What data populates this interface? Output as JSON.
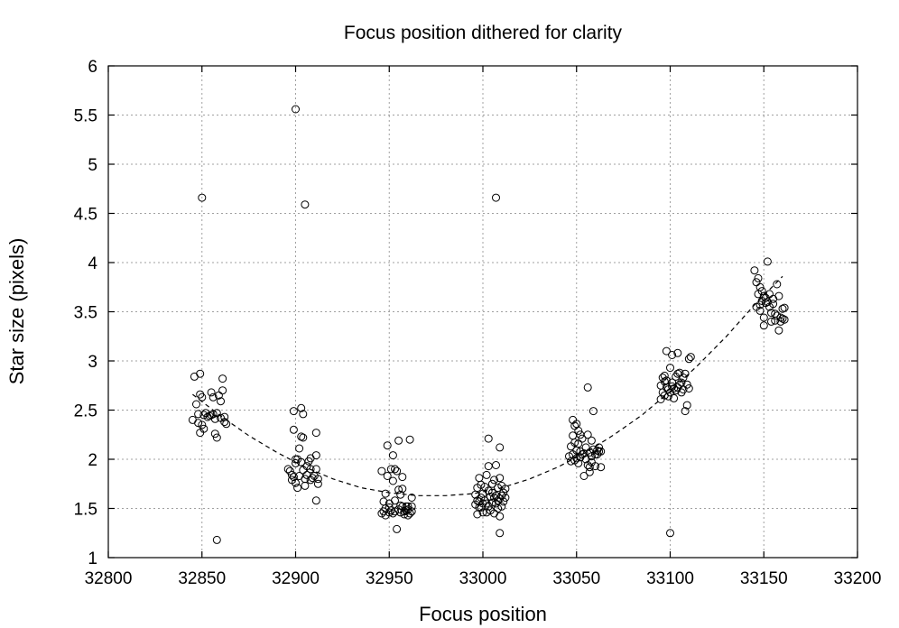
{
  "chart_data": {
    "type": "scatter",
    "title": "Focus position dithered for clarity",
    "xlabel": "Focus position",
    "ylabel": "Star size (pixels)",
    "xlim": [
      32800,
      33200
    ],
    "ylim": [
      1,
      6
    ],
    "x_ticks": [
      "32800",
      "32850",
      "32900",
      "32950",
      "33000",
      "33050",
      "33100",
      "33150",
      "33200"
    ],
    "y_ticks": [
      "1",
      "1.5",
      "2",
      "2.5",
      "3",
      "3.5",
      "4",
      "4.5",
      "5",
      "5.5",
      "6"
    ],
    "grid": true,
    "marker": "open-circle",
    "series": [
      {
        "points": [
          [
            32845,
            2.4
          ],
          [
            32846,
            2.84
          ],
          [
            32847,
            2.56
          ],
          [
            32848,
            2.37
          ],
          [
            32848,
            2.46
          ],
          [
            32849,
            2.87
          ],
          [
            32849,
            2.66
          ],
          [
            32849,
            2.27
          ],
          [
            32850,
            2.63
          ],
          [
            32850,
            2.35
          ],
          [
            32851,
            2.45
          ],
          [
            32851,
            2.31
          ],
          [
            32852,
            2.47
          ],
          [
            32853,
            2.43
          ],
          [
            32854,
            2.44
          ],
          [
            32855,
            2.68
          ],
          [
            32855,
            2.45
          ],
          [
            32856,
            2.63
          ],
          [
            32856,
            2.46
          ],
          [
            32857,
            2.41
          ],
          [
            32857,
            2.26
          ],
          [
            32858,
            2.22
          ],
          [
            32858,
            2.47
          ],
          [
            32859,
            2.65
          ],
          [
            32860,
            2.59
          ],
          [
            32860,
            2.42
          ],
          [
            32861,
            2.82
          ],
          [
            32861,
            2.7
          ],
          [
            32862,
            2.38
          ],
          [
            32862,
            2.43
          ],
          [
            32863,
            2.36
          ],
          [
            32850,
            4.66
          ],
          [
            32858,
            1.18
          ],
          [
            32896,
            1.9
          ],
          [
            32897,
            1.88
          ],
          [
            32898,
            1.84
          ],
          [
            32898,
            1.79
          ],
          [
            32899,
            1.82
          ],
          [
            32899,
            2.49
          ],
          [
            32899,
            2.3
          ],
          [
            32900,
            1.96
          ],
          [
            32900,
            2.0
          ],
          [
            32900,
            1.76
          ],
          [
            32901,
            2.0
          ],
          [
            32901,
            1.71
          ],
          [
            32902,
            1.83
          ],
          [
            32902,
            2.11
          ],
          [
            32903,
            2.52
          ],
          [
            32903,
            2.23
          ],
          [
            32903,
            1.97
          ],
          [
            32904,
            2.46
          ],
          [
            32904,
            2.22
          ],
          [
            32904,
            1.89
          ],
          [
            32905,
            1.8
          ],
          [
            32905,
            1.73
          ],
          [
            32906,
            1.84
          ],
          [
            32906,
            1.93
          ],
          [
            32907,
            1.98
          ],
          [
            32908,
            1.9
          ],
          [
            32908,
            1.79
          ],
          [
            32908,
            2.01
          ],
          [
            32909,
            1.81
          ],
          [
            32910,
            1.83
          ],
          [
            32911,
            2.04
          ],
          [
            32911,
            1.9
          ],
          [
            32911,
            2.27
          ],
          [
            32911,
            1.58
          ],
          [
            32912,
            1.75
          ],
          [
            32912,
            1.8
          ],
          [
            32900,
            5.56
          ],
          [
            32905,
            4.59
          ],
          [
            32946,
            1.88
          ],
          [
            32946,
            1.45
          ],
          [
            32947,
            1.47
          ],
          [
            32947,
            1.57
          ],
          [
            32948,
            1.5
          ],
          [
            32948,
            1.43
          ],
          [
            32948,
            1.65
          ],
          [
            32949,
            1.83
          ],
          [
            32949,
            2.14
          ],
          [
            32950,
            1.51
          ],
          [
            32950,
            1.46
          ],
          [
            32950,
            1.55
          ],
          [
            32951,
            1.9
          ],
          [
            32951,
            1.48
          ],
          [
            32952,
            1.78
          ],
          [
            32952,
            1.45
          ],
          [
            32952,
            2.04
          ],
          [
            32953,
            1.47
          ],
          [
            32953,
            1.58
          ],
          [
            32953,
            1.9
          ],
          [
            32954,
            1.88
          ],
          [
            32954,
            1.29
          ],
          [
            32955,
            1.69
          ],
          [
            32955,
            1.49
          ],
          [
            32955,
            2.19
          ],
          [
            32956,
            1.64
          ],
          [
            32956,
            1.46
          ],
          [
            32956,
            1.53
          ],
          [
            32957,
            1.82
          ],
          [
            32957,
            1.7
          ],
          [
            32957,
            1.52
          ],
          [
            32958,
            1.47
          ],
          [
            32958,
            1.44
          ],
          [
            32959,
            1.48
          ],
          [
            32959,
            1.52
          ],
          [
            32960,
            1.43
          ],
          [
            32960,
            1.49
          ],
          [
            32960,
            1.52
          ],
          [
            32961,
            1.45
          ],
          [
            32961,
            2.2
          ],
          [
            32962,
            1.61
          ],
          [
            32962,
            1.47
          ],
          [
            32962,
            1.52
          ],
          [
            32996,
            1.54
          ],
          [
            32996,
            1.64
          ],
          [
            32997,
            1.71
          ],
          [
            32997,
            1.58
          ],
          [
            32997,
            1.44
          ],
          [
            32998,
            1.57
          ],
          [
            32998,
            1.81
          ],
          [
            32998,
            1.51
          ],
          [
            32999,
            1.51
          ],
          [
            32999,
            1.61
          ],
          [
            32999,
            1.74
          ],
          [
            33000,
            1.55
          ],
          [
            33000,
            1.65
          ],
          [
            33000,
            1.46
          ],
          [
            33001,
            1.58
          ],
          [
            33001,
            1.72
          ],
          [
            33002,
            1.55
          ],
          [
            33002,
            1.84
          ],
          [
            33002,
            1.46
          ],
          [
            33003,
            1.68
          ],
          [
            33003,
            1.52
          ],
          [
            33003,
            1.93
          ],
          [
            33004,
            1.62
          ],
          [
            33004,
            1.48
          ],
          [
            33005,
            1.75
          ],
          [
            33005,
            1.56
          ],
          [
            33005,
            1.66
          ],
          [
            33006,
            1.61
          ],
          [
            33006,
            1.45
          ],
          [
            33006,
            1.79
          ],
          [
            33007,
            1.94
          ],
          [
            33007,
            1.55
          ],
          [
            33007,
            1.63
          ],
          [
            33008,
            1.71
          ],
          [
            33008,
            1.5
          ],
          [
            33008,
            1.58
          ],
          [
            33009,
            1.6
          ],
          [
            33009,
            1.81
          ],
          [
            33009,
            1.42
          ],
          [
            33010,
            1.73
          ],
          [
            33010,
            1.63
          ],
          [
            33010,
            1.52
          ],
          [
            33011,
            1.57
          ],
          [
            33011,
            1.66
          ],
          [
            33012,
            1.61
          ],
          [
            33012,
            1.7
          ],
          [
            33003,
            2.21
          ],
          [
            33009,
            2.12
          ],
          [
            33009,
            1.25
          ],
          [
            33007,
            4.66
          ],
          [
            33046,
            2.03
          ],
          [
            33047,
            2.13
          ],
          [
            33047,
            1.98
          ],
          [
            33048,
            2.4
          ],
          [
            33048,
            2.24
          ],
          [
            33048,
            2.05
          ],
          [
            33049,
            2.34
          ],
          [
            33049,
            2.17
          ],
          [
            33049,
            1.99
          ],
          [
            33050,
            2.09
          ],
          [
            33050,
            2.36
          ],
          [
            33050,
            2.01
          ],
          [
            33051,
            2.29
          ],
          [
            33051,
            2.16
          ],
          [
            33051,
            1.96
          ],
          [
            33052,
            2.08
          ],
          [
            33052,
            2.25
          ],
          [
            33052,
            2.02
          ],
          [
            33053,
            2.21
          ],
          [
            33053,
            2.05
          ],
          [
            33054,
            1.83
          ],
          [
            33054,
            2.06
          ],
          [
            33055,
            2.0
          ],
          [
            33055,
            2.12
          ],
          [
            33056,
            1.94
          ],
          [
            33056,
            2.25
          ],
          [
            33057,
            1.92
          ],
          [
            33057,
            2.07
          ],
          [
            33057,
            1.87
          ],
          [
            33058,
            2.19
          ],
          [
            33058,
            2.03
          ],
          [
            33058,
            1.97
          ],
          [
            33059,
            2.1
          ],
          [
            33059,
            2.49
          ],
          [
            33060,
            2.05
          ],
          [
            33060,
            1.93
          ],
          [
            33061,
            2.09
          ],
          [
            33061,
            2.05
          ],
          [
            33062,
            2.08
          ],
          [
            33062,
            2.12
          ],
          [
            33063,
            2.08
          ],
          [
            33063,
            1.92
          ],
          [
            33056,
            2.73
          ],
          [
            33095,
            2.61
          ],
          [
            33095,
            2.75
          ],
          [
            33096,
            2.83
          ],
          [
            33096,
            2.68
          ],
          [
            33097,
            2.85
          ],
          [
            33097,
            2.79
          ],
          [
            33097,
            2.65
          ],
          [
            33098,
            2.73
          ],
          [
            33098,
            3.1
          ],
          [
            33098,
            2.8
          ],
          [
            33099,
            2.64
          ],
          [
            33099,
            2.71
          ],
          [
            33100,
            2.68
          ],
          [
            33100,
            2.93
          ],
          [
            33101,
            3.06
          ],
          [
            33101,
            2.74
          ],
          [
            33101,
            2.78
          ],
          [
            33102,
            2.62
          ],
          [
            33102,
            2.72
          ],
          [
            33103,
            2.7
          ],
          [
            33103,
            2.84
          ],
          [
            33104,
            2.87
          ],
          [
            33104,
            3.08
          ],
          [
            33104,
            2.73
          ],
          [
            33105,
            2.76
          ],
          [
            33105,
            2.88
          ],
          [
            33106,
            2.78
          ],
          [
            33106,
            2.68
          ],
          [
            33107,
            2.71
          ],
          [
            33107,
            2.83
          ],
          [
            33108,
            2.49
          ],
          [
            33108,
            2.87
          ],
          [
            33109,
            2.55
          ],
          [
            33109,
            2.76
          ],
          [
            33110,
            2.72
          ],
          [
            33110,
            3.02
          ],
          [
            33111,
            3.04
          ],
          [
            33100,
            1.25
          ],
          [
            33145,
            3.92
          ],
          [
            33146,
            3.8
          ],
          [
            33146,
            3.55
          ],
          [
            33147,
            3.68
          ],
          [
            33147,
            3.84
          ],
          [
            33148,
            3.75
          ],
          [
            33148,
            3.57
          ],
          [
            33148,
            3.51
          ],
          [
            33149,
            3.61
          ],
          [
            33149,
            3.71
          ],
          [
            33150,
            3.44
          ],
          [
            33150,
            3.66
          ],
          [
            33150,
            3.36
          ],
          [
            33151,
            3.59
          ],
          [
            33151,
            3.64
          ],
          [
            33152,
            4.01
          ],
          [
            33152,
            3.6
          ],
          [
            33153,
            3.68
          ],
          [
            33153,
            3.55
          ],
          [
            33154,
            3.49
          ],
          [
            33154,
            3.4
          ],
          [
            33155,
            3.63
          ],
          [
            33155,
            3.58
          ],
          [
            33156,
            3.48
          ],
          [
            33156,
            3.41
          ],
          [
            33157,
            3.78
          ],
          [
            33157,
            3.46
          ],
          [
            33158,
            3.66
          ],
          [
            33158,
            3.31
          ],
          [
            33159,
            3.44
          ],
          [
            33159,
            3.4
          ],
          [
            33160,
            3.53
          ],
          [
            33160,
            3.43
          ],
          [
            33161,
            3.54
          ],
          [
            33161,
            3.42
          ]
        ]
      },
      {
        "style": "dashed-fit",
        "x": [
          32845,
          32860,
          32875,
          32890,
          32905,
          32920,
          32935,
          32950,
          32965,
          32980,
          32995,
          33010,
          33025,
          33040,
          33055,
          33070,
          33085,
          33100,
          33115,
          33130,
          33145,
          33160
        ],
        "y": [
          2.66,
          2.44,
          2.24,
          2.07,
          1.92,
          1.8,
          1.71,
          1.66,
          1.63,
          1.63,
          1.65,
          1.71,
          1.8,
          1.92,
          2.07,
          2.25,
          2.45,
          2.69,
          2.96,
          3.25,
          3.57,
          3.86
        ]
      }
    ]
  }
}
